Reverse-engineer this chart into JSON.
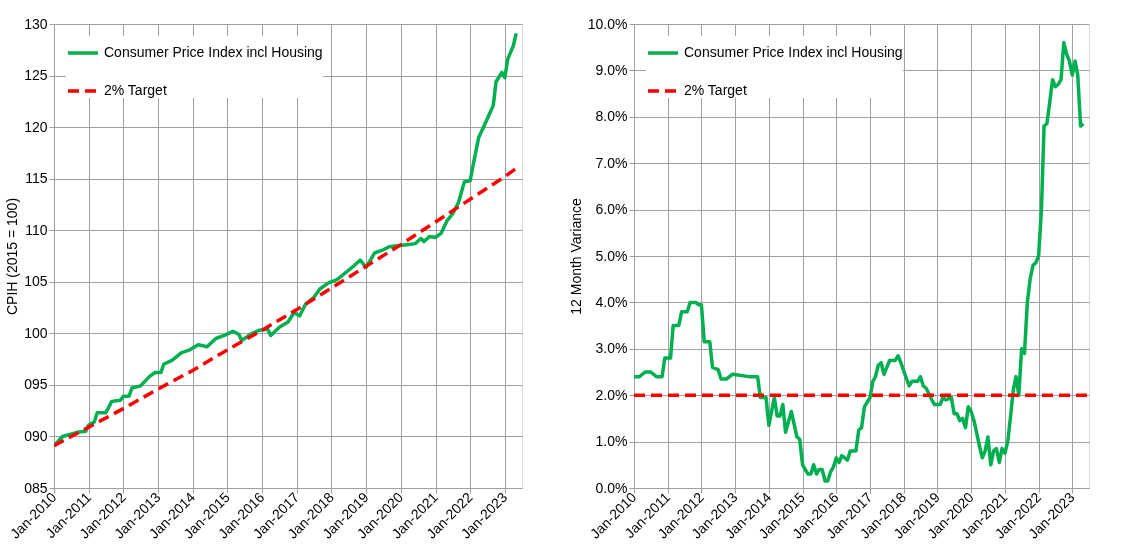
{
  "chart_data": [
    {
      "type": "line",
      "ylabel": "CPIH (2015 = 100)",
      "xlim": [
        "2010-01",
        "2023-07"
      ],
      "xticks": [
        {
          "value": "2010-01",
          "label": "Jan-2010"
        },
        {
          "value": "2011-01",
          "label": "Jan-2011"
        },
        {
          "value": "2012-01",
          "label": "Jan-2012"
        },
        {
          "value": "2013-01",
          "label": "Jan-2013"
        },
        {
          "value": "2014-01",
          "label": "Jan-2014"
        },
        {
          "value": "2015-01",
          "label": "Jan-2015"
        },
        {
          "value": "2016-01",
          "label": "Jan-2016"
        },
        {
          "value": "2017-01",
          "label": "Jan-2017"
        },
        {
          "value": "2018-01",
          "label": "Jan-2018"
        },
        {
          "value": "2019-01",
          "label": "Jan-2019"
        },
        {
          "value": "2020-01",
          "label": "Jan-2020"
        },
        {
          "value": "2021-01",
          "label": "Jan-2021"
        },
        {
          "value": "2022-01",
          "label": "Jan-2022"
        },
        {
          "value": "2023-01",
          "label": "Jan-2023"
        }
      ],
      "ylim": [
        85,
        130
      ],
      "yticks": [
        {
          "value": 85,
          "label": "085"
        },
        {
          "value": 90,
          "label": "090"
        },
        {
          "value": 95,
          "label": "095"
        },
        100,
        105,
        110,
        115,
        120,
        125,
        130
      ],
      "grid": true,
      "legend": "top left",
      "marker": "none",
      "series": [
        {
          "name": "Consumer Price Index incl Housing",
          "color": "#00b050",
          "line_style": "solid",
          "x": [
            "2010-01",
            "2010-04",
            "2010-09",
            "2010-12",
            "2011-01",
            "2011-03",
            "2011-04",
            "2011-07",
            "2011-09",
            "2011-12",
            "2012-01",
            "2012-03",
            "2012-04",
            "2012-07",
            "2012-10",
            "2012-12",
            "2013-02",
            "2013-03",
            "2013-06",
            "2013-09",
            "2013-12",
            "2014-03",
            "2014-06",
            "2014-09",
            "2014-12",
            "2015-03",
            "2015-05",
            "2015-06",
            "2015-09",
            "2015-12",
            "2016-03",
            "2016-04",
            "2016-07",
            "2016-10",
            "2016-12",
            "2017-02",
            "2017-04",
            "2017-07",
            "2017-09",
            "2017-12",
            "2018-03",
            "2018-06",
            "2018-09",
            "2018-11",
            "2019-01",
            "2019-04",
            "2019-07",
            "2019-09",
            "2019-12",
            "2020-03",
            "2020-06",
            "2020-08",
            "2020-09",
            "2020-11",
            "2021-01",
            "2021-03",
            "2021-05",
            "2021-07",
            "2021-09",
            "2021-11",
            "2022-01",
            "2022-02",
            "2022-04",
            "2022-07",
            "2022-09",
            "2022-10",
            "2022-12",
            "2023-01",
            "2023-02",
            "2023-04",
            "2023-05"
          ],
          "values": [
            89.1,
            90.0,
            90.4,
            90.5,
            91.1,
            91.4,
            92.3,
            92.3,
            93.4,
            93.5,
            93.9,
            93.9,
            94.7,
            94.9,
            95.8,
            96.2,
            96.2,
            97.0,
            97.4,
            98.1,
            98.4,
            98.9,
            98.7,
            99.5,
            99.8,
            100.2,
            99.9,
            99.3,
            99.9,
            100.3,
            100.4,
            99.8,
            100.6,
            101.1,
            102.0,
            101.7,
            102.8,
            103.5,
            104.3,
            104.9,
            105.2,
            105.9,
            106.6,
            107.1,
            106.4,
            107.8,
            108.1,
            108.4,
            108.5,
            108.6,
            108.7,
            109.2,
            108.9,
            109.4,
            109.3,
            109.7,
            110.9,
            111.6,
            112.7,
            114.7,
            114.8,
            116.3,
            119.0,
            120.8,
            122.1,
            124.4,
            125.3,
            124.8,
            126.6,
            127.9,
            129.1
          ]
        },
        {
          "name": "2% Target",
          "color": "#ff0000",
          "line_style": "dashed",
          "x": [
            "2010-01",
            "2011-01",
            "2012-01",
            "2013-01",
            "2014-01",
            "2015-01",
            "2016-01",
            "2017-01",
            "2018-01",
            "2019-01",
            "2020-01",
            "2021-01",
            "2022-01",
            "2023-01",
            "2023-05"
          ],
          "values": [
            89.1,
            90.9,
            92.7,
            94.6,
            96.4,
            98.4,
            100.3,
            102.3,
            104.4,
            106.5,
            108.6,
            110.8,
            113.0,
            115.2,
            116.0
          ]
        }
      ]
    },
    {
      "type": "line",
      "ylabel": "12 Month Variance",
      "xlim": [
        "2010-01",
        "2023-07"
      ],
      "xticks": [
        {
          "value": "2010-01",
          "label": "Jan-2010"
        },
        {
          "value": "2011-01",
          "label": "Jan-2011"
        },
        {
          "value": "2012-01",
          "label": "Jan-2012"
        },
        {
          "value": "2013-01",
          "label": "Jan-2013"
        },
        {
          "value": "2014-01",
          "label": "Jan-2014"
        },
        {
          "value": "2015-01",
          "label": "Jan-2015"
        },
        {
          "value": "2016-01",
          "label": "Jan-2016"
        },
        {
          "value": "2017-01",
          "label": "Jan-2017"
        },
        {
          "value": "2018-01",
          "label": "Jan-2018"
        },
        {
          "value": "2019-01",
          "label": "Jan-2019"
        },
        {
          "value": "2020-01",
          "label": "Jan-2020"
        },
        {
          "value": "2021-01",
          "label": "Jan-2021"
        },
        {
          "value": "2022-01",
          "label": "Jan-2022"
        },
        {
          "value": "2023-01",
          "label": "Jan-2023"
        }
      ],
      "ylim": [
        0,
        10
      ],
      "yticks": [
        {
          "value": 0,
          "label": "0.0%"
        },
        {
          "value": 1,
          "label": "1.0%"
        },
        {
          "value": 2,
          "label": "2.0%"
        },
        {
          "value": 3,
          "label": "3.0%"
        },
        {
          "value": 4,
          "label": "4.0%"
        },
        {
          "value": 5,
          "label": "5.0%"
        },
        {
          "value": 6,
          "label": "6.0%"
        },
        {
          "value": 7,
          "label": "7.0%"
        },
        {
          "value": 8,
          "label": "8.0%"
        },
        {
          "value": 9,
          "label": "9.0%"
        },
        {
          "value": 10,
          "label": "10.0%"
        }
      ],
      "grid": true,
      "legend": "top left",
      "marker": "none",
      "series": [
        {
          "name": "Consumer Price Index incl Housing",
          "color": "#00b050",
          "line_style": "solid",
          "x": [
            "2010-01",
            "2010-03",
            "2010-05",
            "2010-07",
            "2010-09",
            "2010-11",
            "2010-12",
            "2011-02",
            "2011-03",
            "2011-05",
            "2011-06",
            "2011-08",
            "2011-09",
            "2011-11",
            "2011-12",
            "2012-01",
            "2012-02",
            "2012-04",
            "2012-05",
            "2012-07",
            "2012-08",
            "2012-10",
            "2012-12",
            "2013-06",
            "2013-09",
            "2013-10",
            "2013-12",
            "2014-01",
            "2014-03",
            "2014-04",
            "2014-05",
            "2014-06",
            "2014-07",
            "2014-09",
            "2014-11",
            "2014-12",
            "2015-01",
            "2015-03",
            "2015-04",
            "2015-05",
            "2015-06",
            "2015-07",
            "2015-08",
            "2015-09",
            "2015-10",
            "2015-11",
            "2015-12",
            "2016-01",
            "2016-02",
            "2016-03",
            "2016-05",
            "2016-06",
            "2016-08",
            "2016-09",
            "2016-10",
            "2016-11",
            "2017-01",
            "2017-02",
            "2017-03",
            "2017-04",
            "2017-05",
            "2017-06",
            "2017-08",
            "2017-10",
            "2017-11",
            "2017-12",
            "2018-02",
            "2018-03",
            "2018-04",
            "2018-06",
            "2018-07",
            "2018-08",
            "2018-09",
            "2018-11",
            "2018-12",
            "2019-02",
            "2019-03",
            "2019-04",
            "2019-06",
            "2019-07",
            "2019-08",
            "2019-09",
            "2019-10",
            "2019-11",
            "2019-12",
            "2020-01",
            "2020-02",
            "2020-04",
            "2020-05",
            "2020-06",
            "2020-07",
            "2020-08",
            "2020-09",
            "2020-10",
            "2020-11",
            "2020-12",
            "2021-01",
            "2021-02",
            "2021-03",
            "2021-04",
            "2021-05",
            "2021-06",
            "2021-07",
            "2021-08",
            "2021-09",
            "2021-10",
            "2021-11",
            "2021-12",
            "2022-01",
            "2022-02",
            "2022-03",
            "2022-04",
            "2022-05",
            "2022-06",
            "2022-07",
            "2022-08",
            "2022-09",
            "2022-10",
            "2022-11",
            "2022-12",
            "2023-01",
            "2023-02",
            "2023-03",
            "2023-04",
            "2023-05"
          ],
          "values": [
            2.4,
            2.4,
            2.5,
            2.5,
            2.4,
            2.4,
            2.8,
            2.8,
            3.5,
            3.5,
            3.8,
            3.8,
            4.0,
            4.0,
            3.95,
            3.95,
            3.15,
            3.15,
            2.6,
            2.55,
            2.35,
            2.35,
            2.45,
            2.4,
            2.4,
            1.95,
            1.95,
            1.35,
            1.95,
            1.55,
            1.55,
            1.8,
            1.2,
            1.65,
            1.1,
            1.05,
            0.5,
            0.3,
            0.3,
            0.5,
            0.3,
            0.4,
            0.4,
            0.15,
            0.15,
            0.35,
            0.45,
            0.65,
            0.55,
            0.7,
            0.6,
            0.8,
            0.8,
            1.25,
            1.3,
            1.75,
            1.95,
            2.3,
            2.4,
            2.65,
            2.7,
            2.45,
            2.75,
            2.75,
            2.85,
            2.7,
            2.35,
            2.2,
            2.3,
            2.3,
            2.4,
            2.2,
            2.15,
            1.9,
            1.8,
            1.8,
            1.95,
            1.9,
            1.95,
            1.6,
            1.6,
            1.45,
            1.5,
            1.3,
            1.75,
            1.65,
            1.45,
            0.9,
            0.65,
            0.8,
            1.1,
            0.5,
            0.8,
            0.85,
            0.55,
            0.85,
            0.75,
            1.0,
            1.5,
            2.1,
            2.4,
            2.0,
            3.0,
            2.9,
            4.0,
            4.5,
            4.8,
            4.85,
            5.0,
            6.0,
            7.8,
            7.85,
            8.3,
            8.8,
            8.65,
            8.7,
            8.8,
            9.6,
            9.35,
            9.2,
            8.9,
            9.2,
            8.9,
            7.8,
            7.85
          ]
        },
        {
          "name": "2% Target",
          "color": "#ff0000",
          "line_style": "dashed",
          "x": [
            "2010-01",
            "2023-07"
          ],
          "values": [
            2,
            2
          ]
        }
      ]
    }
  ]
}
